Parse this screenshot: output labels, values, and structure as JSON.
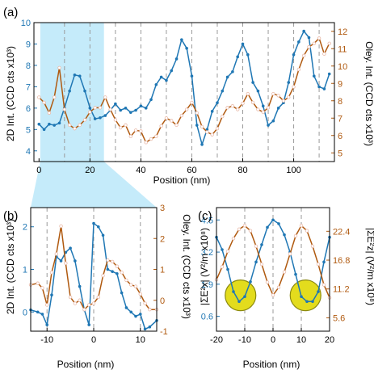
{
  "colors": {
    "blue": "#1F77B4",
    "orange": "#B05A10",
    "shade": "#C5EBFA",
    "yellow": "#E3DC1D",
    "yellow_edge": "#8C8A10"
  },
  "chart_data": [
    {
      "type": "line",
      "panel_label": "(a)",
      "xlabel": "Position (nm)",
      "ylabel_left": "2D Int. (CCD cts x10³)",
      "ylabel_right": "Oley. Int. (CCD cts x10³)",
      "xlim": [
        -2,
        116
      ],
      "ylim_left": [
        3.5,
        10
      ],
      "ylim_right": [
        4.5,
        12.5
      ],
      "xticks": [
        "0",
        "20",
        "40",
        "60",
        "80",
        "100"
      ],
      "yticks_left": [
        "4",
        "5",
        "6",
        "7",
        "8",
        "9",
        "10"
      ],
      "yticks_right": [
        "5",
        "6",
        "7",
        "8",
        "9",
        "10",
        "11",
        "12"
      ],
      "dashed_x": [
        10,
        20,
        30,
        40,
        50,
        60,
        70,
        80,
        90,
        100,
        110
      ],
      "shaded_x": [
        0.5,
        25.5
      ],
      "series": [
        {
          "axis": "left",
          "x": [
            0,
            2,
            4,
            6,
            8,
            10,
            12,
            14,
            16,
            18,
            20,
            22,
            24,
            26,
            28,
            30,
            32,
            34,
            36,
            38,
            40,
            42,
            44,
            46,
            48,
            50,
            52,
            54,
            56,
            58,
            60,
            62,
            64,
            66,
            68,
            70,
            72,
            74,
            76,
            78,
            80,
            82,
            84,
            86,
            88,
            90,
            92,
            94,
            96,
            98,
            100,
            102,
            104,
            106,
            108,
            110,
            112,
            114
          ],
          "values": [
            5.25,
            5.0,
            5.25,
            5.2,
            5.3,
            6.0,
            6.8,
            7.55,
            7.5,
            6.8,
            6.0,
            5.5,
            5.55,
            5.65,
            5.9,
            6.2,
            5.9,
            6.0,
            5.8,
            5.9,
            6.1,
            6.0,
            6.4,
            7.1,
            7.45,
            7.3,
            7.75,
            8.3,
            9.2,
            8.8,
            7.5,
            5.2,
            4.3,
            5.0,
            5.85,
            6.25,
            6.8,
            7.45,
            7.7,
            8.4,
            9.0,
            8.5,
            7.2,
            6.8,
            6.1,
            5.2,
            5.4,
            6.0,
            6.25,
            7.2,
            8.5,
            9.1,
            9.6,
            9.3,
            7.5,
            7.0,
            6.9,
            7.6
          ]
        },
        {
          "axis": "right",
          "x": [
            0,
            2,
            4,
            6,
            8,
            10,
            12,
            14,
            16,
            18,
            20,
            22,
            24,
            26,
            28,
            30,
            32,
            34,
            36,
            38,
            40,
            42,
            44,
            46,
            48,
            50,
            52,
            54,
            56,
            58,
            60,
            62,
            64,
            66,
            68,
            70,
            72,
            74,
            76,
            78,
            80,
            82,
            84,
            86,
            88,
            90,
            92,
            94,
            96,
            98,
            100,
            102,
            104,
            106,
            108,
            110,
            112,
            114
          ],
          "values": [
            8.2,
            7.9,
            7.3,
            8.2,
            9.9,
            7.5,
            6.6,
            6.4,
            6.6,
            6.9,
            7.35,
            7.6,
            7.6,
            8.2,
            7.5,
            6.9,
            6.45,
            6.6,
            5.95,
            6.3,
            6.25,
            5.6,
            5.8,
            5.95,
            6.55,
            7.0,
            6.85,
            6.6,
            7.15,
            7.5,
            7.9,
            7.3,
            6.5,
            6.2,
            6.05,
            6.4,
            7.1,
            7.6,
            7.7,
            7.5,
            7.85,
            8.4,
            7.9,
            7.5,
            7.35,
            7.6,
            8.4,
            8.3,
            8.0,
            8.2,
            8.8,
            9.8,
            10.6,
            11.1,
            11.3,
            11.6,
            10.7,
            11.3
          ]
        }
      ]
    },
    {
      "type": "line",
      "panel_label": "(b)",
      "xlabel": "Position (nm)",
      "ylabel_left": "2D Int. (CCD cts x10³)",
      "ylabel_right": "Oley. Int. (CCD cts x10³)",
      "xlim": [
        -13.5,
        13.5
      ],
      "ylim_left": [
        -0.45,
        2.45
      ],
      "ylim_right": [
        -1,
        3
      ],
      "xticks": [
        "-10",
        "0",
        "10"
      ],
      "yticks_left": [
        "0",
        "1",
        "2"
      ],
      "yticks_right": [
        "-1",
        "0",
        "1",
        "2",
        "3"
      ],
      "dashed_x": [
        -10,
        0,
        10
      ],
      "series": [
        {
          "axis": "left",
          "x": [
            -13.5,
            -12,
            -11,
            -10,
            -9,
            -8,
            -7,
            -6,
            -5,
            -4,
            -3,
            -2,
            -1,
            0,
            1,
            2,
            3,
            4,
            5,
            6,
            7,
            8,
            9,
            10,
            11,
            12,
            13.5
          ],
          "values": [
            0.05,
            0.0,
            -0.05,
            -0.3,
            0.4,
            1.3,
            1.2,
            1.4,
            1.5,
            1.2,
            0.6,
            0.05,
            -0.3,
            2.08,
            2.0,
            1.8,
            1.0,
            0.95,
            0.9,
            0.45,
            0.1,
            0.0,
            -0.1,
            -0.05,
            -0.4,
            -0.35,
            -0.2
          ]
        },
        {
          "axis": "right",
          "x": [
            -13.5,
            -12,
            -11,
            -10,
            -9,
            -8,
            -7,
            -6,
            -5,
            -4,
            -3,
            -2,
            -1,
            0,
            1,
            2,
            3,
            4,
            5,
            6,
            7,
            8,
            9,
            10,
            11,
            12,
            13.5
          ],
          "values": [
            0.5,
            0.55,
            0.4,
            -0.15,
            0.9,
            1.5,
            2.4,
            1.2,
            0.1,
            -0.1,
            0.0,
            -0.3,
            -0.15,
            -0.1,
            0.1,
            0.8,
            1.3,
            1.25,
            1.1,
            0.9,
            0.65,
            0.5,
            0.45,
            0.2,
            -0.1,
            -0.3,
            -0.3
          ]
        }
      ]
    },
    {
      "type": "line",
      "panel_label": "(c)",
      "xlabel": "Position (nm)",
      "ylabel_left": "|ΣE²x| (V²/m x10⁸)",
      "ylabel_right": "|ΣE²z| (V²/m x10⁸)",
      "xlim": [
        -20,
        20
      ],
      "ylim_left": [
        0,
        5.0
      ],
      "ylim_right": [
        3.0,
        27.0
      ],
      "xticks": [
        "-20",
        "-10",
        "0",
        "10",
        "20"
      ],
      "yticks_left": [
        "0.6",
        "1.9",
        "3.2",
        "4.5"
      ],
      "yticks_right": [
        "5.6",
        "11.2",
        "16.8",
        "22.4"
      ],
      "dashed_x": [
        -10,
        0,
        10
      ],
      "circles_x": [
        -11.5,
        11.5
      ],
      "series": [
        {
          "axis": "left",
          "x": [
            -20,
            -18,
            -16,
            -14,
            -12,
            -10,
            -8,
            -6,
            -4,
            -2,
            0,
            2,
            4,
            6,
            8,
            10,
            12,
            14,
            16,
            18,
            20
          ],
          "values": [
            3.8,
            3.3,
            2.5,
            1.6,
            1.2,
            1.4,
            2.0,
            2.8,
            3.5,
            4.2,
            4.5,
            4.35,
            3.9,
            3.2,
            2.3,
            1.4,
            1.2,
            1.2,
            1.6,
            2.8,
            3.8
          ]
        },
        {
          "axis": "right",
          "x": [
            -20,
            -18,
            -16,
            -14,
            -12,
            -10,
            -8,
            -6,
            -4,
            -2,
            0,
            2,
            4,
            6,
            8,
            10,
            12,
            14,
            16,
            18,
            20
          ],
          "values": [
            13.0,
            15.5,
            18.5,
            21.0,
            22.8,
            23.5,
            22.5,
            19.5,
            16.0,
            12.5,
            10.0,
            11.5,
            14.5,
            18.0,
            21.5,
            23.5,
            22.5,
            19.5,
            16.0,
            12.0,
            9.5
          ]
        }
      ]
    }
  ]
}
